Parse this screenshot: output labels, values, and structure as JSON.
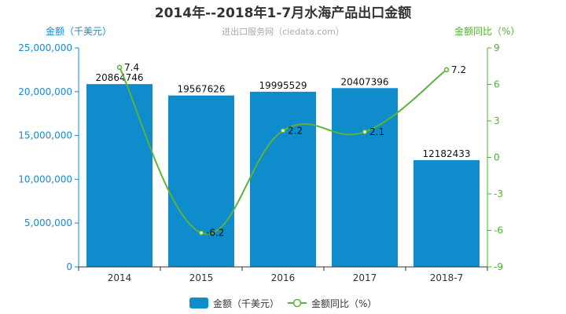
{
  "chart": {
    "title": "2014年--2018年1-7月水海产品出口金额",
    "subtitle": "进出口服务网（ciedata.com）",
    "colors": {
      "bar": "#0f8ccc",
      "line": "#5bb33b",
      "left_axis": "#1a8ac8",
      "right_axis": "#4fb135"
    }
  },
  "chart_data": {
    "type": "bar",
    "title": "2014年--2018年1-7月水海产品出口金额",
    "categories": [
      "2014",
      "2015",
      "2016",
      "2017",
      "2018-7"
    ],
    "series": [
      {
        "name": "金额（千美元）",
        "type": "bar",
        "axis": "left",
        "values": [
          20864746,
          19567626,
          19995529,
          20407396,
          12182433
        ]
      },
      {
        "name": "金额同比（%）",
        "type": "line",
        "axis": "right",
        "values": [
          7.4,
          -6.2,
          2.2,
          2.1,
          7.2
        ]
      }
    ],
    "ylabel": "金额（千美元）",
    "ylabel_right": "金额同比（%）",
    "ylim": [
      0,
      25000000
    ],
    "ylim_right": [
      -9,
      9
    ],
    "yticks": [
      "0",
      "5,000,000",
      "10,000,000",
      "15,000,000",
      "20,000,000",
      "25,000,000"
    ],
    "yticks_right": [
      "-9",
      "-6",
      "-3",
      "0",
      "3",
      "6",
      "9"
    ],
    "grid": false,
    "legend": "bottom-center"
  }
}
